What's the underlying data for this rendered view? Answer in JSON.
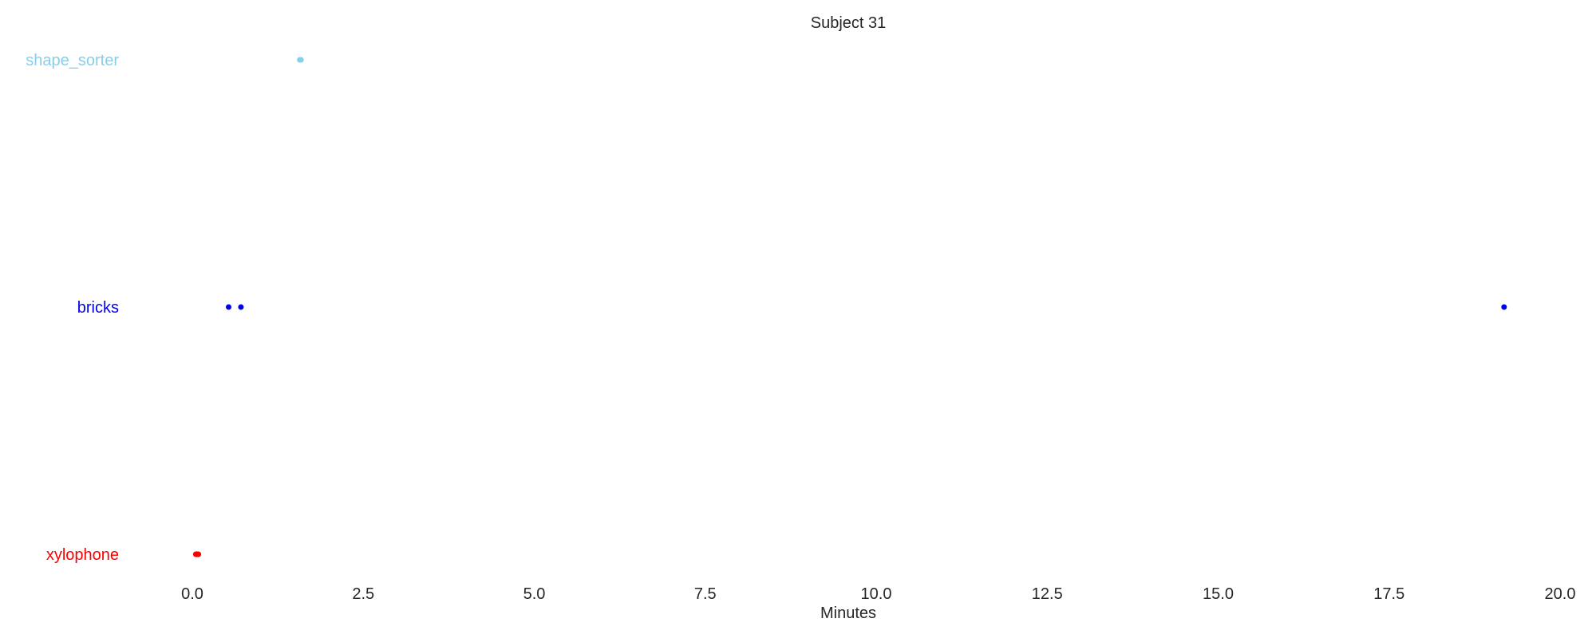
{
  "chart_data": {
    "type": "timeline",
    "title": "Subject 31",
    "xlabel": "Minutes",
    "ylabel": "",
    "xlim": [
      -0.05,
      20.0
    ],
    "x_ticks": [
      "0.0",
      "2.5",
      "5.0",
      "7.5",
      "10.0",
      "12.5",
      "15.0",
      "17.5",
      "20.0"
    ],
    "grid": false,
    "legend": "none",
    "categories": [
      "shape_sorter",
      "bricks",
      "xylophone"
    ],
    "series": [
      {
        "name": "shape_sorter",
        "color": "#87ceeb",
        "intervals": [
          [
            1.53,
            1.63
          ]
        ]
      },
      {
        "name": "bricks",
        "color": "#0000ee",
        "intervals": [
          [
            0.49,
            0.57
          ],
          [
            0.67,
            0.72
          ],
          [
            19.14,
            19.21
          ]
        ]
      },
      {
        "name": "xylophone",
        "color": "#ff0000",
        "intervals": [
          [
            0.01,
            0.13
          ]
        ]
      }
    ]
  }
}
